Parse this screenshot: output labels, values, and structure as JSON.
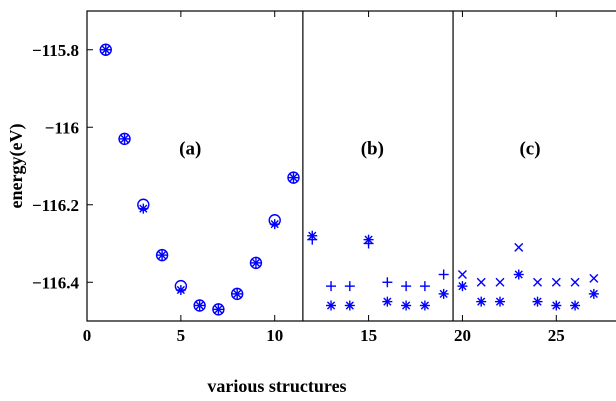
{
  "chart_data": {
    "type": "scatter",
    "title": "",
    "xlabel": "various structures",
    "ylabel": "energy(eV)",
    "xlim": [
      0,
      28.5
    ],
    "ylim": [
      -116.5,
      -115.7
    ],
    "x_ticks": [
      0,
      5,
      10,
      15,
      20,
      25
    ],
    "x_tick_labels": [
      "0",
      "5",
      "10",
      "15",
      "20",
      "25"
    ],
    "y_ticks": [
      -115.8,
      -116,
      -116.2,
      -116.4
    ],
    "y_tick_labels": [
      "−115.8",
      "−116",
      "−116.2",
      "−116.4"
    ],
    "dividers_x": [
      11.5,
      19.5
    ],
    "panel_labels": [
      {
        "text": "(a)",
        "x": 5.5,
        "y": -116.07
      },
      {
        "text": "(b)",
        "x": 15.2,
        "y": -116.07
      },
      {
        "text": "(c)",
        "x": 23.6,
        "y": -116.07
      }
    ],
    "color": "#0000ff",
    "series": [
      {
        "marker": "circle",
        "x": [
          1,
          2,
          3,
          4,
          5,
          6,
          7,
          8,
          9,
          10,
          11
        ],
        "y": [
          -115.8,
          -116.03,
          -116.2,
          -116.33,
          -116.41,
          -116.46,
          -116.47,
          -116.43,
          -116.35,
          -116.24,
          -116.13
        ]
      },
      {
        "marker": "asterisk",
        "x": [
          1,
          2,
          3,
          4,
          5,
          6,
          7,
          8,
          9,
          10,
          11
        ],
        "y": [
          -115.8,
          -116.03,
          -116.21,
          -116.33,
          -116.42,
          -116.46,
          -116.47,
          -116.43,
          -116.35,
          -116.25,
          -116.13
        ]
      },
      {
        "marker": "plus",
        "x": [
          12,
          13,
          14,
          15,
          16,
          17,
          18,
          19
        ],
        "y": [
          -116.29,
          -116.41,
          -116.41,
          -116.3,
          -116.4,
          -116.41,
          -116.41,
          -116.38
        ]
      },
      {
        "marker": "asterisk",
        "x": [
          12,
          13,
          14,
          15,
          16,
          17,
          18,
          19
        ],
        "y": [
          -116.28,
          -116.46,
          -116.46,
          -116.29,
          -116.45,
          -116.46,
          -116.46,
          -116.43
        ]
      },
      {
        "marker": "x",
        "x": [
          20,
          21,
          22,
          23,
          24,
          25,
          26,
          27
        ],
        "y": [
          -116.38,
          -116.4,
          -116.4,
          -116.31,
          -116.4,
          -116.4,
          -116.4,
          -116.39
        ]
      },
      {
        "marker": "asterisk",
        "x": [
          20,
          21,
          22,
          23,
          24,
          25,
          26,
          27
        ],
        "y": [
          -116.41,
          -116.45,
          -116.45,
          -116.38,
          -116.45,
          -116.46,
          -116.46,
          -116.43
        ]
      }
    ]
  }
}
